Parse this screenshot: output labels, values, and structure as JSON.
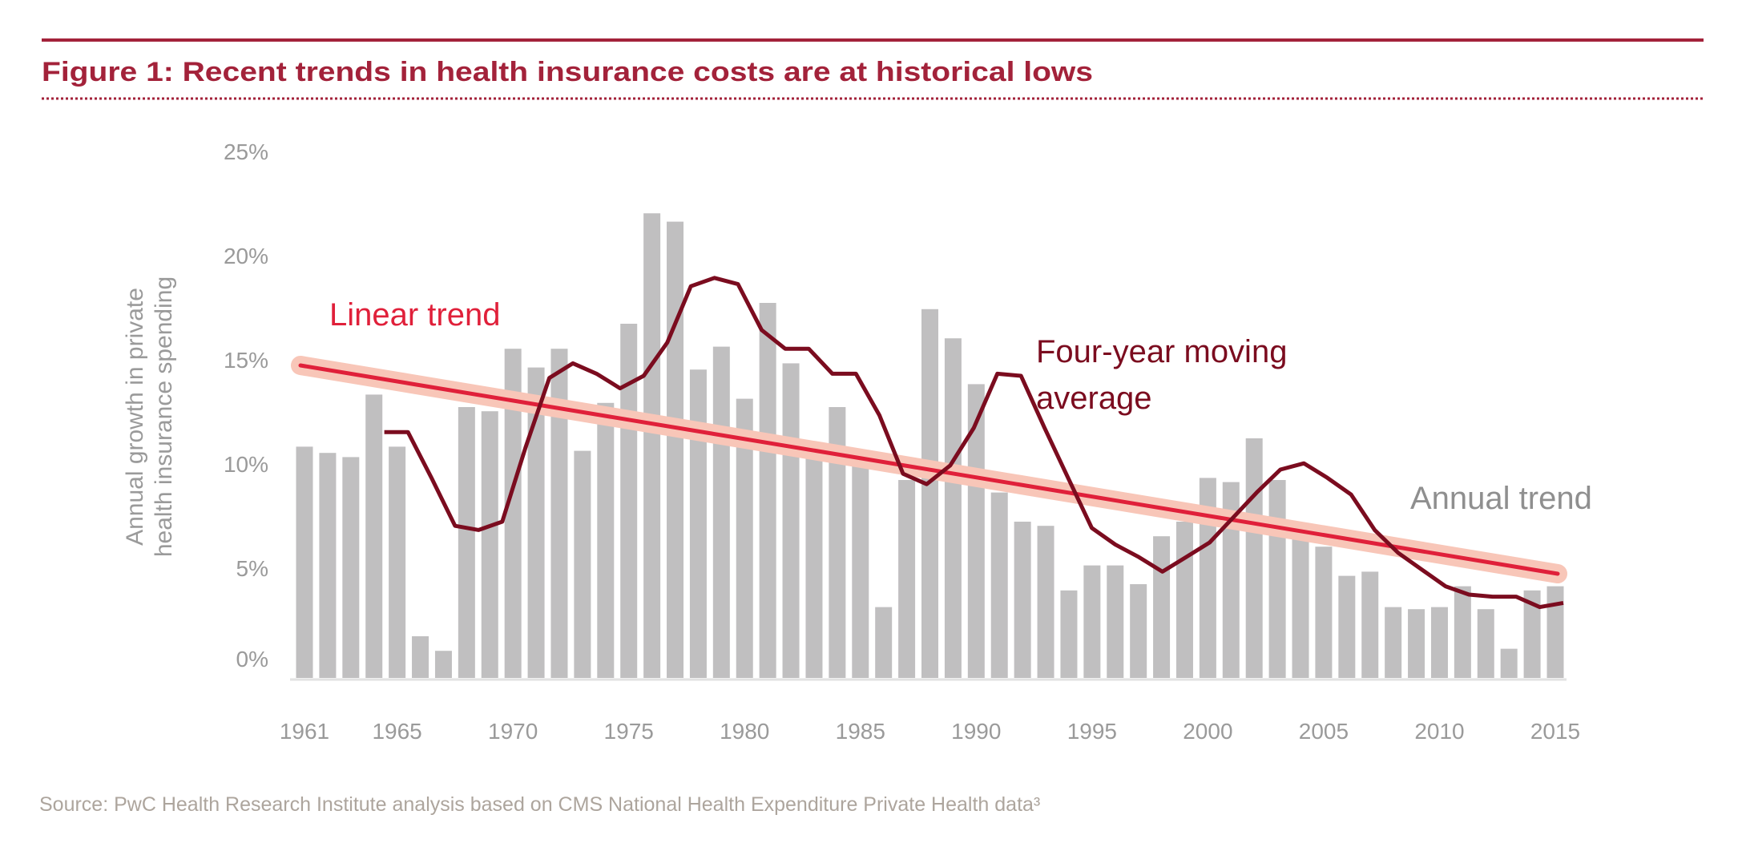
{
  "header": {
    "title": "Figure 1: Recent trends in health insurance costs are at historical lows"
  },
  "source": "Source: PwC Health Research Institute analysis based on CMS National Health Expenditure Private Health data³",
  "colors": {
    "title": "#a3223a",
    "bars": "#c0bfc0",
    "linear_trend": "#e0203a",
    "linear_trend_halo": "#f8c6b8",
    "moving_average": "#7b0c1f",
    "annual_label": "#8f8f8f"
  },
  "chart_data": {
    "type": "bar",
    "title": "Figure 1: Recent trends in health insurance costs are at historical lows",
    "ylabel_lines": [
      "Annual growth in private",
      "health insurance spending"
    ],
    "xlabel": "",
    "ylim": [
      0,
      25
    ],
    "yticks": [
      "0%",
      "5%",
      "10%",
      "15%",
      "20%",
      "25%"
    ],
    "ytick_values": [
      0,
      5,
      10,
      15,
      20,
      25
    ],
    "xticks": [
      "1961",
      "1965",
      "1970",
      "1975",
      "1980",
      "1985",
      "1990",
      "1995",
      "2000",
      "2005",
      "2010",
      "2015"
    ],
    "grid": false,
    "annotations": {
      "linear": "Linear trend",
      "moving_line1": "Four-year moving",
      "moving_line2": "average",
      "annual": "Annual trend"
    },
    "annual": {
      "years": [
        1961,
        1962,
        1963,
        1964,
        1965,
        1966,
        1967,
        1968,
        1969,
        1970,
        1971,
        1972,
        1973,
        1974,
        1975,
        1976,
        1977,
        1978,
        1979,
        1980,
        1981,
        1982,
        1983,
        1984,
        1985,
        1986,
        1987,
        1988,
        1989,
        1990,
        1991,
        1992,
        1993,
        1994,
        1995,
        1996,
        1997,
        1998,
        1999,
        2000,
        2001,
        2002,
        2003,
        2004,
        2005,
        2006,
        2007,
        2008,
        2009,
        2010,
        2011,
        2012,
        2013,
        2014,
        2015
      ],
      "values": [
        11.1,
        10.8,
        10.6,
        13.6,
        11.1,
        2.0,
        1.3,
        13.0,
        12.8,
        15.8,
        14.9,
        15.8,
        10.9,
        13.2,
        17.0,
        22.3,
        21.9,
        14.8,
        15.9,
        13.4,
        18.0,
        15.1,
        10.6,
        13.0,
        10.2,
        3.4,
        9.5,
        17.7,
        16.3,
        14.1,
        8.9,
        7.5,
        7.3,
        4.2,
        5.4,
        5.4,
        4.5,
        6.8,
        7.5,
        9.6,
        9.4,
        11.5,
        9.5,
        7.0,
        6.3,
        4.9,
        5.1,
        3.4,
        3.3,
        3.4,
        4.4,
        3.3,
        1.4,
        4.2,
        4.4
      ]
    },
    "moving_average": {
      "years": [
        1965,
        1966,
        1967,
        1968,
        1969,
        1970,
        1971,
        1972,
        1973,
        1974,
        1975,
        1976,
        1977,
        1978,
        1979,
        1980,
        1981,
        1982,
        1983,
        1984,
        1985,
        1986,
        1987,
        1988,
        1989,
        1990,
        1991,
        1992,
        1993,
        1994,
        1995,
        1996,
        1997,
        1998,
        1999,
        2000,
        2001,
        2002,
        2003,
        2004,
        2005,
        2006,
        2007,
        2008,
        2009,
        2010,
        2011,
        2012,
        2013,
        2014,
        2015
      ],
      "values": [
        11.8,
        11.8,
        9.6,
        7.3,
        7.1,
        7.5,
        11.1,
        14.4,
        15.1,
        14.6,
        13.9,
        14.5,
        16.1,
        18.8,
        19.2,
        18.9,
        16.7,
        15.8,
        15.8,
        14.6,
        14.6,
        12.6,
        9.8,
        9.3,
        10.2,
        12.0,
        14.6,
        14.5,
        12.0,
        9.6,
        7.2,
        6.4,
        5.8,
        5.1,
        5.8,
        6.5,
        7.7,
        8.9,
        10.0,
        10.3,
        9.6,
        8.8,
        7.1,
        6.0,
        5.2,
        4.4,
        4.0,
        3.9,
        3.9,
        3.4,
        3.6
      ]
    },
    "linear_trend": {
      "years": [
        1961,
        2015
      ],
      "values": [
        15.0,
        5.0
      ]
    }
  }
}
